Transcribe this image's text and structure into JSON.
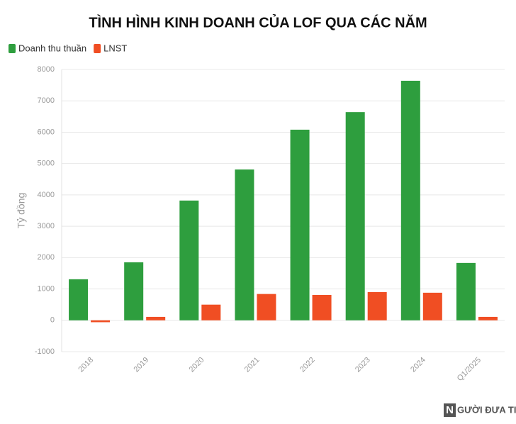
{
  "chart_data": {
    "type": "bar",
    "title": "TÌNH HÌNH KINH DOANH CỦA LOF QUA CÁC NĂM",
    "y_label": "Tỷ đồng",
    "categories": [
      "2018",
      "2019",
      "2020",
      "2021",
      "2022",
      "2023",
      "2024",
      "Q1/2025"
    ],
    "series": [
      {
        "name": "Doanh thu thuần",
        "color": "#2e9e3e",
        "values": [
          1310,
          1850,
          3820,
          4810,
          6080,
          6640,
          7640,
          1830
        ]
      },
      {
        "name": "LNST",
        "color": "#f04e23",
        "values": [
          -60,
          110,
          500,
          840,
          810,
          900,
          880,
          110
        ]
      }
    ],
    "ylim": [
      -1000,
      8000
    ],
    "yticks": [
      -1000,
      0,
      1000,
      2000,
      3000,
      4000,
      5000,
      6000,
      7000,
      8000
    ],
    "grid": true,
    "watermark_letter": "N",
    "watermark_text": "GƯỜI ĐƯA TIN"
  }
}
